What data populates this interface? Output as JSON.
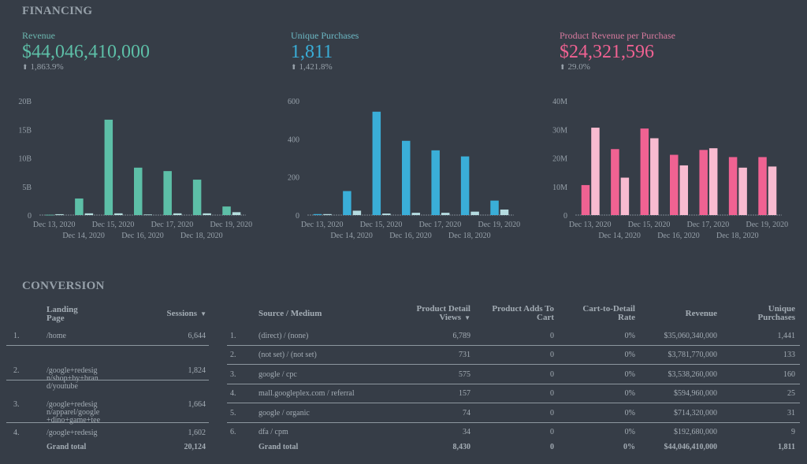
{
  "financing": {
    "title": "FINANCING",
    "kpis": [
      {
        "label": "Revenue",
        "value": "$44,046,410,000",
        "delta": "1,863.9%",
        "color": "#5dbfa7",
        "label_color": "#6cb8b0"
      },
      {
        "label": "Unique Purchases",
        "value": "1,811",
        "delta": "1,421.8%",
        "color": "#3aaed8",
        "label_color": "#6cb8c4"
      },
      {
        "label": "Product Revenue per Purchase",
        "value": "$24,321,596",
        "delta": "29.0%",
        "color": "#f06292",
        "label_color": "#d77a9e"
      }
    ],
    "delta_icon": "arrow-up-icon"
  },
  "chart_data": [
    {
      "type": "bar",
      "categories": [
        "Dec 13, 2020",
        "Dec 14, 2020",
        "Dec 15, 2020",
        "Dec 16, 2020",
        "Dec 17, 2020",
        "Dec 18, 2020",
        "Dec 19, 2020"
      ],
      "series": [
        {
          "values": [
            0.05,
            2.9,
            16.7,
            8.3,
            7.7,
            6.2,
            1.5
          ],
          "color": "#5dbfa7"
        },
        {
          "values": [
            0.15,
            0.3,
            0.3,
            0.1,
            0.3,
            0.3,
            0.5
          ],
          "color": "#b5dedd"
        }
      ],
      "ylim": [
        0,
        20
      ],
      "yticks": [
        "0",
        "5B",
        "10B",
        "15B",
        "20B"
      ],
      "unit": "B"
    },
    {
      "type": "bar",
      "categories": [
        "Dec 13, 2020",
        "Dec 14, 2020",
        "Dec 15, 2020",
        "Dec 16, 2020",
        "Dec 17, 2020",
        "Dec 18, 2020",
        "Dec 19, 2020"
      ],
      "series": [
        {
          "values": [
            5,
            126,
            543,
            390,
            340,
            308,
            76
          ],
          "color": "#3aaed8"
        },
        {
          "values": [
            5,
            23,
            8,
            12,
            12,
            18,
            29
          ],
          "color": "#b5dbe0"
        }
      ],
      "ylim": [
        0,
        600
      ],
      "yticks": [
        "0",
        "200",
        "400",
        "600"
      ]
    },
    {
      "type": "bar",
      "categories": [
        "Dec 13, 2020",
        "Dec 14, 2020",
        "Dec 15, 2020",
        "Dec 16, 2020",
        "Dec 17, 2020",
        "Dec 18, 2020",
        "Dec 19, 2020"
      ],
      "series": [
        {
          "values": [
            10.5,
            23.1,
            30.3,
            21.1,
            22.8,
            20.3,
            20.3
          ],
          "color": "#f06292"
        },
        {
          "values": [
            30.6,
            13.1,
            26.9,
            17.4,
            23.4,
            16.6,
            17.0
          ],
          "color": "#f8bbd0"
        }
      ],
      "ylim": [
        0,
        40
      ],
      "yticks": [
        "0",
        "10M",
        "20M",
        "30M",
        "40M"
      ],
      "unit": "M"
    }
  ],
  "conversion": {
    "title": "CONVERSION",
    "landing_table": {
      "headers": {
        "page": "Landing Page",
        "sessions": "Sessions"
      },
      "sort_icon": "sort-desc-icon",
      "rows": [
        {
          "idx": "1.",
          "page": "/home",
          "sessions": "6,644"
        },
        {
          "idx": "2.",
          "page": "/google+redesign/shop+by+brand/youtube",
          "sessions": "1,824"
        },
        {
          "idx": "3.",
          "page": "/google+redesign/apparel/google+dino+game+tee",
          "sessions": "1,664"
        },
        {
          "idx": "4.",
          "page": "/google+redesig",
          "sessions": "1,602"
        }
      ],
      "total": {
        "label": "Grand total",
        "sessions": "20,124"
      }
    },
    "source_table": {
      "headers": {
        "source": "Source / Medium",
        "pdv": "Product Detail Views",
        "patc": "Product Adds To Cart",
        "c2d": "Cart-to-Detail Rate",
        "revenue": "Revenue",
        "up": "Unique Purchases"
      },
      "rows": [
        {
          "idx": "1.",
          "source": "(direct) / (none)",
          "pdv": "6,789",
          "patc": "0",
          "c2d": "0%",
          "revenue": "$35,060,340,000",
          "up": "1,441"
        },
        {
          "idx": "2.",
          "source": "(not set) / (not set)",
          "pdv": "731",
          "patc": "0",
          "c2d": "0%",
          "revenue": "$3,781,770,000",
          "up": "133"
        },
        {
          "idx": "3.",
          "source": "google / cpc",
          "pdv": "575",
          "patc": "0",
          "c2d": "0%",
          "revenue": "$3,538,260,000",
          "up": "160"
        },
        {
          "idx": "4.",
          "source": "mall.googleplex.com / referral",
          "pdv": "157",
          "patc": "0",
          "c2d": "0%",
          "revenue": "$594,960,000",
          "up": "25"
        },
        {
          "idx": "5.",
          "source": "google / organic",
          "pdv": "74",
          "patc": "0",
          "c2d": "0%",
          "revenue": "$714,320,000",
          "up": "31"
        },
        {
          "idx": "6.",
          "source": "dfa / cpm",
          "pdv": "34",
          "patc": "0",
          "c2d": "0%",
          "revenue": "$192,680,000",
          "up": "9"
        }
      ],
      "total": {
        "label": "Grand total",
        "pdv": "8,430",
        "patc": "0",
        "c2d": "0%",
        "revenue": "$44,046,410,000",
        "up": "1,811"
      }
    }
  }
}
